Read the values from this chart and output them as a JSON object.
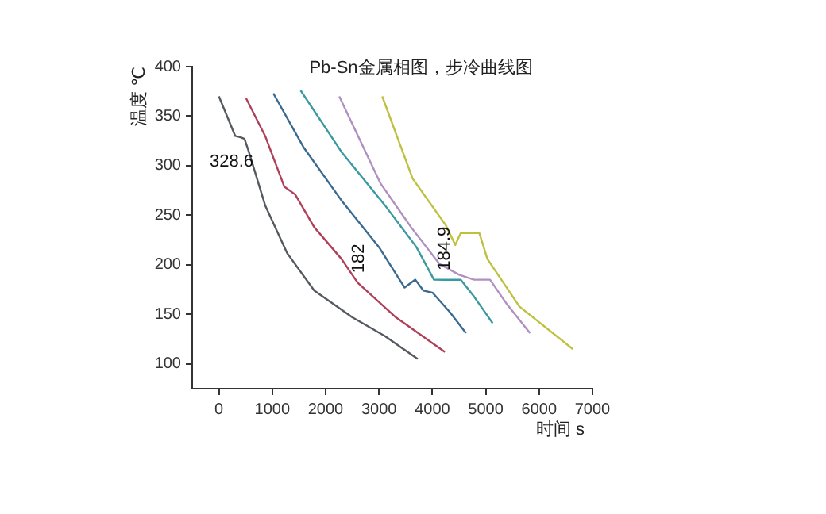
{
  "chart_data": {
    "type": "line",
    "title": "Pb-Sn金属相图，步冷曲线图",
    "xlabel": "时间 s",
    "ylabel": "温度 ℃",
    "xlim": [
      -500,
      7000
    ],
    "xticks": [
      0,
      1000,
      2000,
      3000,
      4000,
      5000,
      6000,
      7000
    ],
    "ylim": [
      75,
      400
    ],
    "yticks": [
      100,
      150,
      200,
      250,
      300,
      350,
      400
    ],
    "grid": false,
    "legend": false,
    "marker": "none",
    "line_style": "solid",
    "series": [
      {
        "color": "#555a60",
        "x": [
          0,
          306,
          408,
          480,
          561,
          867,
          1276,
          1786,
          2500,
          3112,
          3724
        ],
        "values": [
          370,
          330,
          328.6,
          327,
          314,
          260,
          212,
          174,
          147,
          128,
          105
        ]
      },
      {
        "color": "#b0405a",
        "x": [
          510,
          867,
          1224,
          1429,
          1786,
          2296,
          2600,
          3316,
          4235
        ],
        "values": [
          368,
          330,
          279,
          271,
          238,
          206,
          182,
          147,
          112
        ]
      },
      {
        "color": "#3a6a90",
        "x": [
          1020,
          1582,
          2296,
          3010,
          3480,
          3680,
          3830,
          4000,
          4330,
          4630
        ],
        "values": [
          373,
          319,
          265,
          217,
          177,
          185,
          174,
          172,
          152,
          131
        ]
      },
      {
        "color": "#3a9aa0",
        "x": [
          1531,
          2296,
          3112,
          3700,
          4030,
          4200,
          4530,
          4780,
          5130
        ],
        "values": [
          376,
          314,
          260,
          218,
          185,
          184.9,
          185,
          168,
          141
        ]
      },
      {
        "color": "#b090c0",
        "x": [
          2255,
          3030,
          3600,
          4130,
          4500,
          4780,
          5080,
          5400,
          5830
        ],
        "values": [
          370,
          282,
          238,
          201,
          190,
          185,
          185,
          160,
          131
        ]
      },
      {
        "color": "#c0c040",
        "x": [
          3060,
          3630,
          4250,
          4430,
          4530,
          4880,
          5030,
          5630,
          6630
        ],
        "values": [
          370,
          287,
          240,
          220,
          232,
          232,
          206,
          158,
          115
        ]
      }
    ],
    "annotations": [
      {
        "text": "328.6",
        "x": 408,
        "y": 328.6
      },
      {
        "text": "182",
        "x": 2600,
        "y": 182
      },
      {
        "text": "184.9",
        "x": 4200,
        "y": 184.9
      }
    ]
  }
}
